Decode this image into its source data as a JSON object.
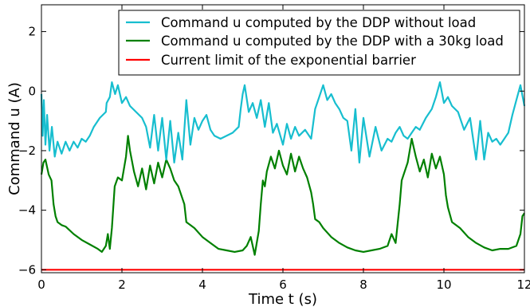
{
  "chart_data": {
    "type": "line",
    "xlabel": "Time t (s)",
    "ylabel": "Command u (A)",
    "xlim": [
      0,
      12
    ],
    "ylim": [
      -6.1,
      2.9
    ],
    "xticks": [
      0,
      2,
      4,
      6,
      8,
      10,
      12
    ],
    "yticks": [
      2,
      0,
      -2,
      -4,
      -6
    ],
    "xtick_labels": [
      "0",
      "2",
      "4",
      "6",
      "8",
      "10",
      "12"
    ],
    "ytick_labels": [
      "2",
      "0",
      "−2",
      "−4",
      "−6"
    ],
    "grid": false,
    "legend_position": "top-right",
    "series": [
      {
        "name": "Command u computed by the DDP without load",
        "color": "#17becf",
        "x": [
          0.0,
          0.03,
          0.06,
          0.1,
          0.14,
          0.2,
          0.26,
          0.33,
          0.4,
          0.5,
          0.6,
          0.7,
          0.8,
          0.9,
          1.0,
          1.1,
          1.2,
          1.3,
          1.45,
          1.6,
          1.62,
          1.7,
          1.75,
          1.83,
          1.9,
          2.0,
          2.1,
          2.2,
          2.35,
          2.5,
          2.6,
          2.7,
          2.8,
          2.9,
          3.0,
          3.1,
          3.2,
          3.3,
          3.4,
          3.5,
          3.6,
          3.7,
          3.8,
          3.9,
          4.0,
          4.1,
          4.2,
          4.3,
          4.45,
          4.6,
          4.75,
          4.9,
          4.95,
          5.0,
          5.05,
          5.15,
          5.25,
          5.35,
          5.45,
          5.55,
          5.65,
          5.75,
          5.85,
          6.0,
          6.1,
          6.2,
          6.3,
          6.4,
          6.55,
          6.7,
          6.8,
          6.9,
          7.0,
          7.1,
          7.2,
          7.3,
          7.4,
          7.5,
          7.6,
          7.7,
          7.8,
          7.9,
          8.0,
          8.15,
          8.3,
          8.45,
          8.6,
          8.7,
          8.8,
          8.9,
          9.0,
          9.1,
          9.2,
          9.3,
          9.4,
          9.55,
          9.7,
          9.8,
          9.9,
          10.0,
          10.1,
          10.2,
          10.35,
          10.5,
          10.65,
          10.8,
          10.9,
          11.0,
          11.1,
          11.2,
          11.3,
          11.4,
          11.5,
          11.6,
          11.7,
          11.8,
          11.9,
          12.0
        ],
        "y": [
          -0.1,
          -1.5,
          -0.3,
          -1.8,
          -0.8,
          -2.0,
          -1.2,
          -2.2,
          -1.7,
          -2.1,
          -1.7,
          -2.0,
          -1.7,
          -1.9,
          -1.6,
          -1.7,
          -1.5,
          -1.2,
          -0.9,
          -0.7,
          -0.4,
          -0.2,
          0.3,
          -0.1,
          0.2,
          -0.4,
          -0.2,
          -0.5,
          -0.7,
          -0.9,
          -1.2,
          -1.9,
          -0.8,
          -2.0,
          -0.9,
          -2.3,
          -1.0,
          -2.4,
          -1.4,
          -2.3,
          -0.3,
          -1.8,
          -0.9,
          -1.3,
          -1.0,
          -0.8,
          -1.3,
          -1.5,
          -1.6,
          -1.5,
          -1.4,
          -1.2,
          -0.6,
          -0.1,
          0.2,
          -0.7,
          -0.4,
          -0.9,
          -0.3,
          -1.2,
          -0.4,
          -1.4,
          -1.1,
          -1.8,
          -1.1,
          -1.6,
          -1.2,
          -1.5,
          -1.3,
          -1.6,
          -0.6,
          -0.2,
          0.2,
          -0.3,
          -0.1,
          -0.4,
          -0.6,
          -0.9,
          -1.0,
          -2.0,
          -0.6,
          -2.4,
          -0.9,
          -2.2,
          -1.2,
          -2.0,
          -1.6,
          -1.7,
          -1.4,
          -1.2,
          -1.5,
          -1.6,
          -1.4,
          -1.2,
          -1.3,
          -0.9,
          -0.6,
          -0.2,
          0.3,
          -0.4,
          -0.2,
          -0.5,
          -0.7,
          -1.3,
          -0.9,
          -2.3,
          -1.0,
          -2.3,
          -1.4,
          -1.7,
          -1.6,
          -1.8,
          -1.6,
          -1.4,
          -0.8,
          -0.3,
          0.2,
          -0.5
        ]
      },
      {
        "name": "Command u computed by the DDP with a 30kg load",
        "color": "#008000",
        "x": [
          0.0,
          0.05,
          0.1,
          0.18,
          0.25,
          0.3,
          0.35,
          0.4,
          0.5,
          0.6,
          0.8,
          1.0,
          1.2,
          1.4,
          1.5,
          1.6,
          1.65,
          1.7,
          1.75,
          1.82,
          1.9,
          2.0,
          2.1,
          2.15,
          2.2,
          2.3,
          2.4,
          2.5,
          2.6,
          2.7,
          2.8,
          2.9,
          3.0,
          3.1,
          3.2,
          3.3,
          3.4,
          3.5,
          3.55,
          3.6,
          3.7,
          3.8,
          4.0,
          4.2,
          4.4,
          4.6,
          4.8,
          5.0,
          5.1,
          5.2,
          5.3,
          5.4,
          5.45,
          5.5,
          5.55,
          5.6,
          5.7,
          5.8,
          5.9,
          6.0,
          6.1,
          6.2,
          6.3,
          6.4,
          6.5,
          6.6,
          6.7,
          6.75,
          6.8,
          6.9,
          7.0,
          7.2,
          7.4,
          7.6,
          7.8,
          8.0,
          8.2,
          8.4,
          8.6,
          8.7,
          8.8,
          8.9,
          8.95,
          9.0,
          9.1,
          9.2,
          9.3,
          9.4,
          9.5,
          9.6,
          9.7,
          9.8,
          9.9,
          10.0,
          10.05,
          10.1,
          10.2,
          10.4,
          10.6,
          10.8,
          11.0,
          11.2,
          11.4,
          11.6,
          11.8,
          11.9,
          11.95,
          12.0
        ],
        "y": [
          -2.8,
          -2.4,
          -2.3,
          -2.8,
          -3.0,
          -3.8,
          -4.2,
          -4.4,
          -4.5,
          -4.55,
          -4.8,
          -5.0,
          -5.15,
          -5.3,
          -5.4,
          -5.2,
          -4.8,
          -5.3,
          -4.6,
          -3.2,
          -2.9,
          -3.0,
          -2.2,
          -1.5,
          -2.0,
          -2.7,
          -3.2,
          -2.6,
          -3.3,
          -2.5,
          -3.1,
          -2.4,
          -2.9,
          -2.3,
          -2.6,
          -3.0,
          -3.2,
          -3.6,
          -3.8,
          -4.4,
          -4.5,
          -4.6,
          -4.9,
          -5.1,
          -5.3,
          -5.35,
          -5.4,
          -5.35,
          -5.2,
          -4.9,
          -5.5,
          -4.7,
          -3.8,
          -3.0,
          -3.2,
          -2.7,
          -2.2,
          -2.6,
          -2.0,
          -2.5,
          -2.8,
          -2.1,
          -2.7,
          -2.2,
          -2.6,
          -2.9,
          -3.4,
          -3.8,
          -4.3,
          -4.4,
          -4.6,
          -4.9,
          -5.1,
          -5.25,
          -5.35,
          -5.4,
          -5.35,
          -5.3,
          -5.2,
          -4.8,
          -5.1,
          -3.8,
          -3.0,
          -2.8,
          -2.4,
          -1.6,
          -2.2,
          -2.7,
          -2.3,
          -2.9,
          -2.1,
          -2.6,
          -2.2,
          -2.8,
          -3.5,
          -3.9,
          -4.4,
          -4.6,
          -4.9,
          -5.1,
          -5.25,
          -5.35,
          -5.3,
          -5.3,
          -5.2,
          -4.8,
          -4.2,
          -4.1
        ]
      },
      {
        "name": "Current limit of the exponential barrier",
        "color": "#ff0000",
        "x": [
          0,
          12
        ],
        "y": [
          -6.0,
          -6.0
        ]
      }
    ]
  }
}
